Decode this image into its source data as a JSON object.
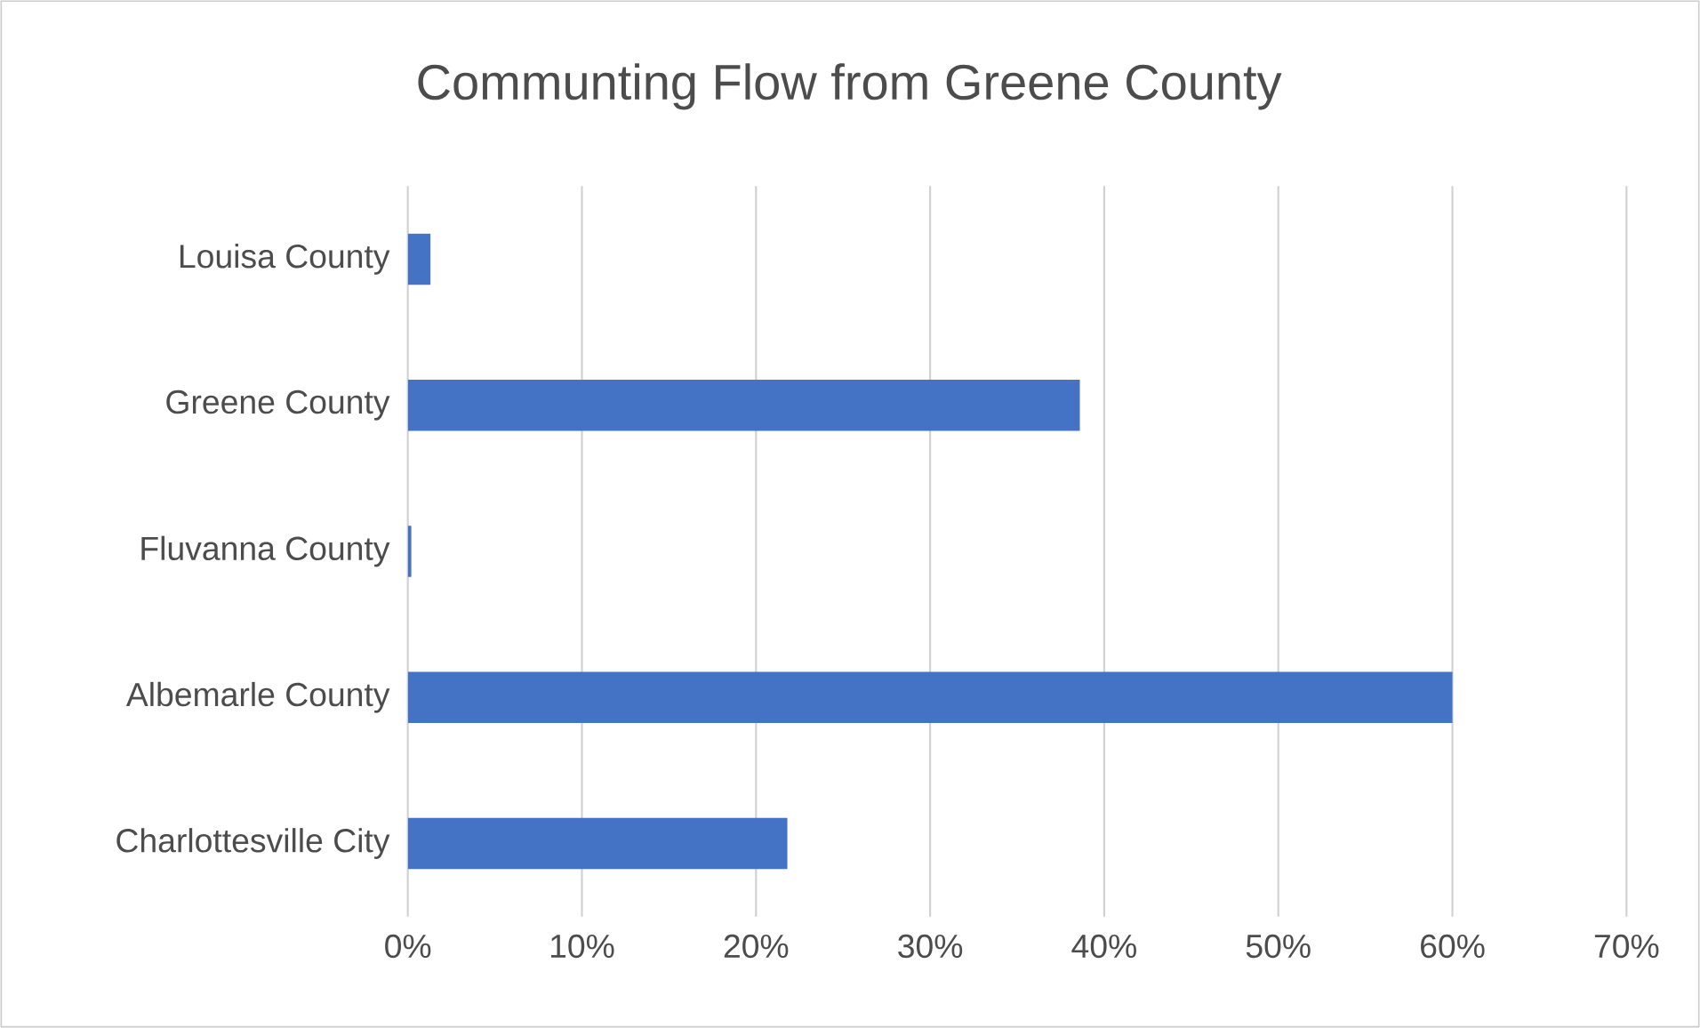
{
  "chart_data": {
    "type": "bar",
    "orientation": "horizontal",
    "title": "Communting Flow from Greene  County",
    "categories": [
      "Louisa County",
      "Greene County",
      "Fluvanna County",
      "Albemarle County",
      "Charlottesville City"
    ],
    "values": [
      1.3,
      38.6,
      0.2,
      60.0,
      21.8
    ],
    "color": "#4472c4",
    "xlim": [
      0,
      70
    ],
    "xticks": [
      {
        "value": 0,
        "label": "0%"
      },
      {
        "value": 10,
        "label": "10%"
      },
      {
        "value": 20,
        "label": "20%"
      },
      {
        "value": 30,
        "label": "30%"
      },
      {
        "value": 40,
        "label": "40%"
      },
      {
        "value": 50,
        "label": "50%"
      },
      {
        "value": 60,
        "label": "60%"
      },
      {
        "value": 70,
        "label": "70%"
      }
    ],
    "grid": "x"
  }
}
